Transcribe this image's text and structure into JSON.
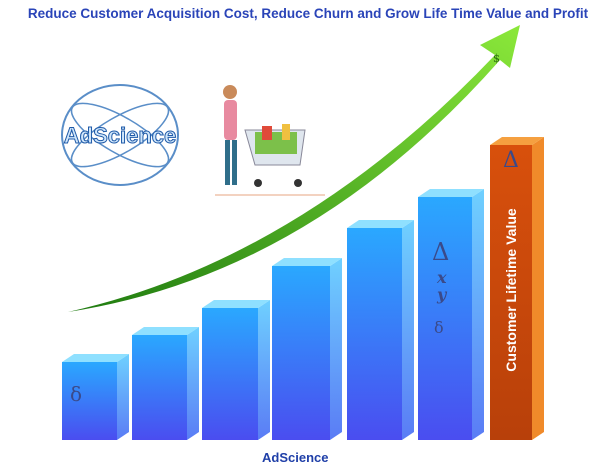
{
  "title": "Reduce Customer Acquisition Cost, Reduce Churn and Grow Life Time Value and Profit",
  "logo_text": "AdScience",
  "brand_footer": "AdScience",
  "orange_bar_label": "Customer Lifetime Value",
  "symbols": {
    "delta": "Δ",
    "small_delta": "δ",
    "x": "x",
    "y": "y",
    "dollar": "$"
  },
  "colors": {
    "title": "#2a44b8",
    "bars": "#2f8cf5",
    "highlight_bar": "#d9540e",
    "arrow": "#5cc21e"
  }
}
